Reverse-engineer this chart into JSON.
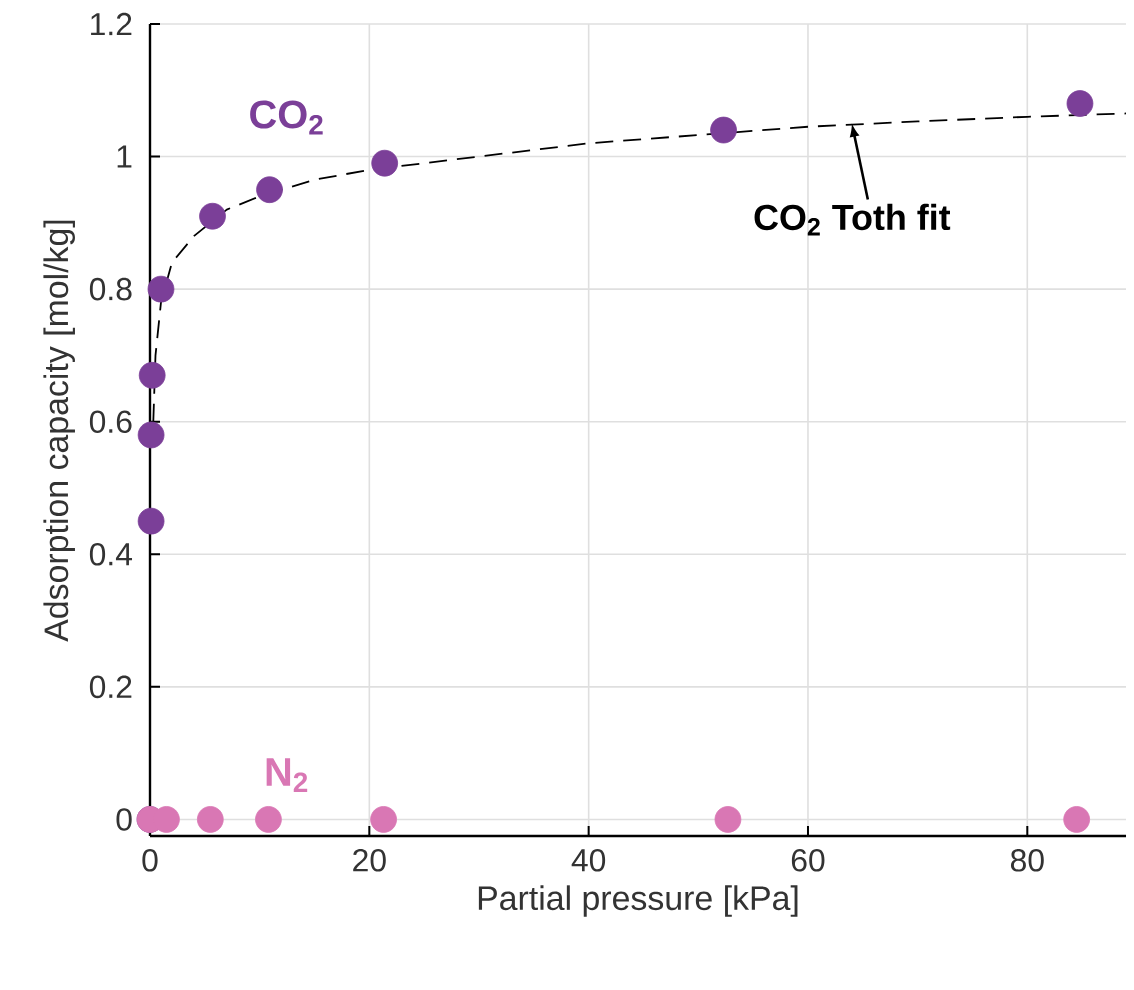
{
  "chart_data": {
    "type": "scatter",
    "xlabel": "Partial pressure [kPa]",
    "ylabel": "Adsorption capacity [mol/kg]",
    "xlim": [
      0,
      89
    ],
    "ylim": [
      -0.025,
      1.2
    ],
    "xticks": [
      0,
      20,
      40,
      60,
      80
    ],
    "yticks": [
      0,
      0.2,
      0.4,
      0.6,
      0.8,
      1,
      1.2
    ],
    "grid": true,
    "series": [
      {
        "name": "CO$_{2}$",
        "color": "#7b3f98",
        "marker": "circle",
        "x": [
          0,
          0.1,
          0.1,
          0.2,
          1,
          5.7,
          10.9,
          21.4,
          52.3,
          84.8
        ],
        "values": [
          0,
          0.45,
          0.58,
          0.67,
          0.8,
          0.91,
          0.95,
          0.99,
          1.04,
          1.08
        ]
      },
      {
        "name": "N$_{2}$",
        "color": "#d977b4",
        "marker": "circle",
        "x": [
          0,
          1.5,
          5.5,
          10.8,
          21.3,
          52.7,
          84.5
        ],
        "values": [
          0,
          0,
          0,
          0,
          0,
          0,
          0
        ]
      },
      {
        "color": "#000000",
        "type": "line",
        "line_style": "dashed",
        "marker": "none",
        "x": [
          0.3,
          0.5,
          1,
          2,
          4,
          7,
          10,
          15,
          20,
          30,
          40,
          52,
          60,
          70,
          80,
          89
        ],
        "values": [
          0.6,
          0.7,
          0.78,
          0.84,
          0.88,
          0.92,
          0.94,
          0.965,
          0.98,
          1.0,
          1.02,
          1.035,
          1.045,
          1.053,
          1.06,
          1.065
        ]
      }
    ],
    "annotations": [
      {
        "text": "CO$_{2}$ Toth fit",
        "x": 64,
        "y": 1.05
      }
    ]
  }
}
